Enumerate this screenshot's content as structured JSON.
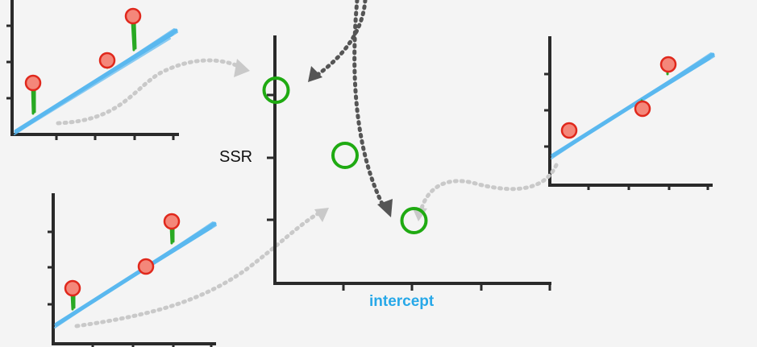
{
  "labels": {
    "y_axis": "SSR",
    "x_axis": "intercept"
  },
  "colors": {
    "fit_line": "#5ab8ef",
    "data_point_fill": "#f4877a",
    "data_point_stroke": "#e0281c",
    "residual": "#29a923",
    "ssr_point": "#1faa12",
    "axis": "#2a2a2a",
    "arrow_dark": "#555555",
    "arrow_light": "#c9c9c9",
    "x_label": "#27a8e8"
  },
  "chart_data": {
    "type": "scatter",
    "series": [
      {
        "values": [
          {
            "x": 1,
            "y": 3
          },
          {
            "x": 2,
            "y": 2
          },
          {
            "x": 3,
            "y": 1
          }
        ]
      }
    ],
    "xlabel": "intercept",
    "ylabel": "SSR"
  }
}
